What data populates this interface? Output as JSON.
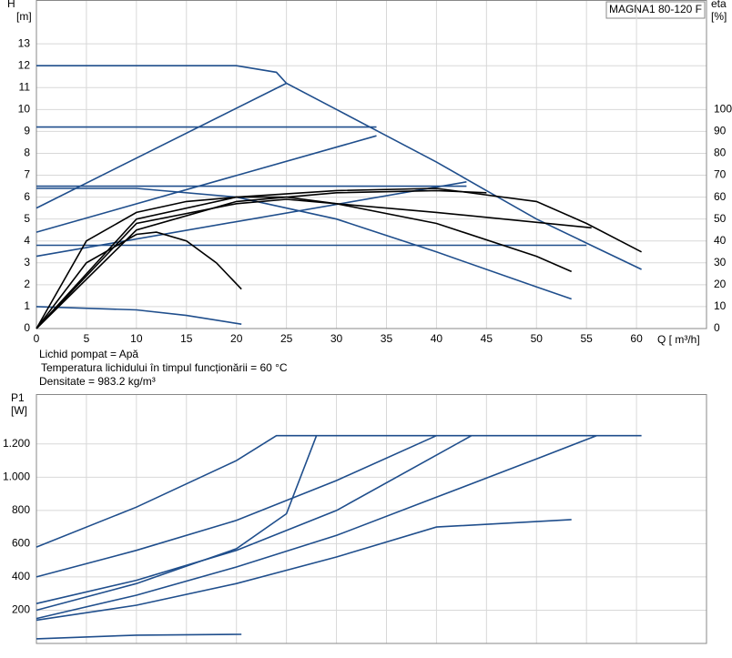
{
  "model": "MAGNA1 80-120 F",
  "notes": [
    "Lichid pompat = Apă",
    "Temperatura lichidului în timpul funcționării = 60 °C",
    "Densitate = 983.2  kg/m³"
  ],
  "chart_data": [
    {
      "type": "line",
      "x_label": "Q [ m³/h]",
      "y_label": "H",
      "y_unit": "[m]",
      "y2_label": "eta",
      "y2_unit": "[%]",
      "xlim": [
        0,
        67
      ],
      "ylim": [
        0,
        15
      ],
      "y2lim": [
        0,
        150
      ],
      "grid": true,
      "xticks": [
        0,
        5,
        10,
        15,
        20,
        25,
        30,
        35,
        40,
        45,
        50,
        55,
        60
      ],
      "yticks": [
        0,
        1,
        2,
        3,
        4,
        5,
        6,
        7,
        8,
        9,
        10,
        11,
        12,
        13
      ],
      "y2ticks": [
        0,
        10,
        20,
        30,
        40,
        50,
        60,
        70,
        80,
        90,
        100
      ],
      "series": [
        {
          "color": "#1f4e8c",
          "x": [
            0,
            10,
            20,
            24,
            25,
            30,
            35,
            40,
            45,
            50,
            55,
            60.5
          ],
          "values": [
            12,
            12,
            12,
            11.7,
            11.2,
            10.0,
            8.8,
            7.6,
            6.3,
            5.0,
            3.9,
            2.7
          ]
        },
        {
          "color": "#1f4e8c",
          "x": [
            0,
            34
          ],
          "values": [
            9.2,
            9.2
          ]
        },
        {
          "color": "#1f4e8c",
          "x": [
            0,
            43
          ],
          "values": [
            6.5,
            6.5
          ]
        },
        {
          "color": "#1f4e8c",
          "x": [
            0,
            55
          ],
          "values": [
            3.8,
            3.8
          ]
        },
        {
          "color": "#1f4e8c",
          "x": [
            0,
            25
          ],
          "values": [
            5.5,
            11.2
          ]
        },
        {
          "color": "#1f4e8c",
          "x": [
            0,
            34
          ],
          "values": [
            4.4,
            8.8
          ]
        },
        {
          "color": "#1f4e8c",
          "x": [
            0,
            43
          ],
          "values": [
            3.3,
            6.7
          ]
        },
        {
          "color": "#1f4e8c",
          "x": [
            0,
            10,
            15,
            20.5
          ],
          "values": [
            1.0,
            0.85,
            0.6,
            0.2
          ]
        },
        {
          "color": "#1f4e8c",
          "x": [
            0,
            10,
            20,
            30,
            40,
            50,
            53.5
          ],
          "values": [
            6.4,
            6.4,
            6.0,
            5.0,
            3.5,
            1.9,
            1.35
          ]
        },
        {
          "color": "#000000",
          "axis": "y2",
          "x": [
            0,
            5,
            10,
            12,
            15,
            18,
            20.5
          ],
          "values": [
            0,
            30,
            43,
            44,
            40,
            30,
            18
          ]
        },
        {
          "color": "#000000",
          "axis": "y2",
          "x": [
            0,
            5,
            10,
            15,
            20,
            25,
            30,
            40,
            50,
            53.5
          ],
          "values": [
            0,
            40,
            53,
            58,
            60,
            60,
            57,
            48,
            33,
            26
          ]
        },
        {
          "color": "#000000",
          "axis": "y2",
          "x": [
            0,
            10,
            20,
            30,
            40,
            50,
            55,
            60.5
          ],
          "values": [
            0,
            50,
            60,
            63,
            64,
            58,
            48,
            35
          ]
        },
        {
          "color": "#000000",
          "axis": "y2",
          "x": [
            0,
            10,
            20,
            25,
            40,
            55.5
          ],
          "values": [
            0,
            48,
            57,
            59,
            53,
            46
          ]
        },
        {
          "color": "#000000",
          "axis": "y2",
          "x": [
            0,
            10,
            20,
            30,
            40,
            45
          ],
          "values": [
            0,
            45,
            58,
            62,
            63,
            62
          ]
        }
      ]
    },
    {
      "type": "line",
      "y_label": "P1",
      "y_unit": "[W]",
      "xlim": [
        0,
        67
      ],
      "ylim": [
        0,
        1500
      ],
      "grid": true,
      "yticks": [
        200,
        400,
        600,
        800,
        {
          "value": 1000,
          "label": "1.000"
        },
        {
          "value": 1200,
          "label": "1.200"
        }
      ],
      "series": [
        {
          "color": "#1f4e8c",
          "x": [
            0,
            10,
            20,
            24,
            60.5
          ],
          "values": [
            580,
            820,
            1100,
            1250,
            1250
          ]
        },
        {
          "color": "#1f4e8c",
          "x": [
            0,
            10,
            20,
            30,
            40
          ],
          "values": [
            400,
            560,
            740,
            980,
            1250
          ]
        },
        {
          "color": "#1f4e8c",
          "x": [
            0,
            10,
            20,
            30,
            40,
            50,
            56
          ],
          "values": [
            150,
            290,
            460,
            650,
            880,
            1110,
            1250
          ]
        },
        {
          "color": "#1f4e8c",
          "x": [
            0,
            10,
            20,
            25,
            28
          ],
          "values": [
            200,
            360,
            570,
            780,
            1250
          ]
        },
        {
          "color": "#1f4e8c",
          "x": [
            0,
            10,
            20,
            30,
            43.5
          ],
          "values": [
            240,
            380,
            560,
            800,
            1250
          ]
        },
        {
          "color": "#1f4e8c",
          "x": [
            0,
            10,
            20,
            30,
            40,
            53.5
          ],
          "values": [
            140,
            230,
            360,
            520,
            700,
            745
          ]
        },
        {
          "color": "#1f4e8c",
          "x": [
            0,
            10,
            20.5
          ],
          "values": [
            28,
            50,
            55
          ]
        }
      ]
    }
  ]
}
